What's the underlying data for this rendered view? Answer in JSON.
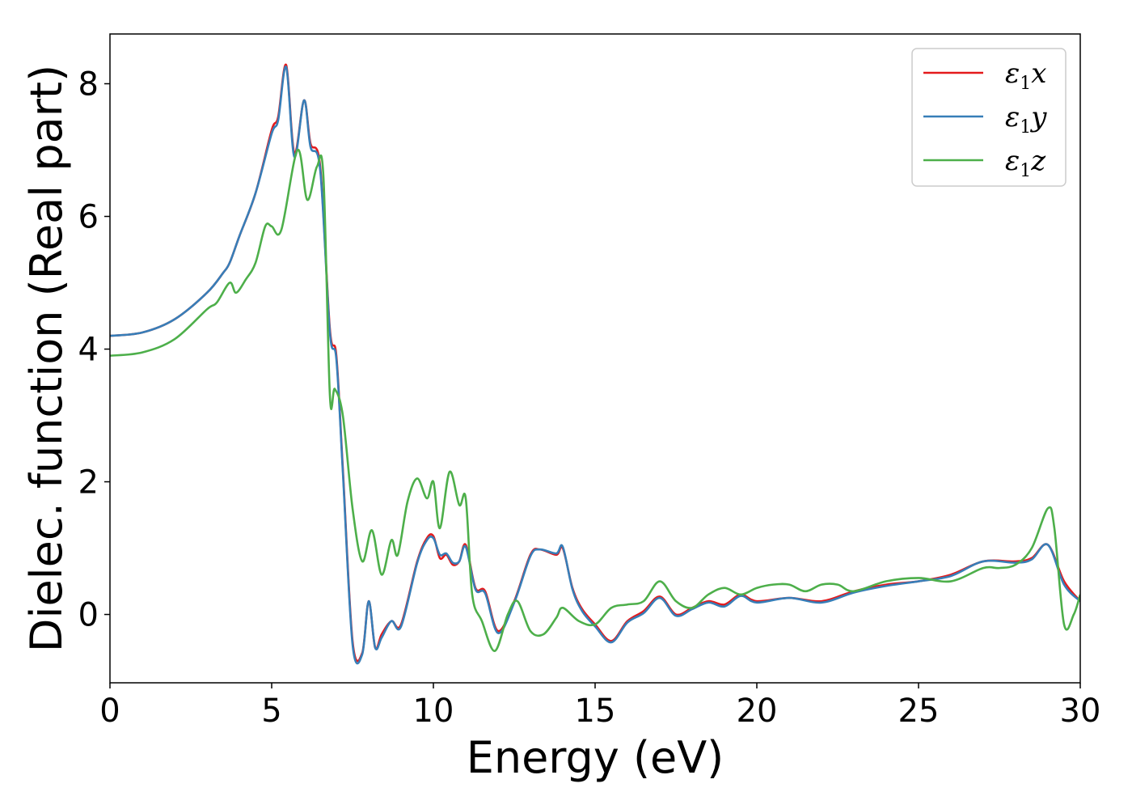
{
  "chart_data": {
    "type": "line",
    "xlabel": "Energy (eV)",
    "ylabel": "Dielec. function (Real part)",
    "xlim": [
      0,
      30
    ],
    "ylim": [
      -1.03,
      8.75
    ],
    "xticks": [
      "0",
      "5",
      "10",
      "15",
      "20",
      "25",
      "30"
    ],
    "yticks": [
      "0",
      "2",
      "4",
      "6",
      "8"
    ],
    "grid": false,
    "legend_position": "top-right",
    "series": [
      {
        "name": "ε1x",
        "legend": {
          "main": "ε",
          "sub": "1",
          "tail": "x"
        },
        "color": "#e41a1c",
        "x": [
          0,
          1,
          2,
          3,
          3.5,
          3.7,
          4,
          4.5,
          5,
          5.2,
          5.45,
          5.7,
          6.0,
          6.2,
          6.5,
          6.8,
          7.0,
          7.2,
          7.5,
          7.8,
          8.0,
          8.2,
          8.4,
          8.7,
          9.0,
          9.5,
          9.8,
          10.0,
          10.2,
          10.4,
          10.6,
          10.8,
          11.0,
          11.3,
          11.6,
          12.0,
          12.5,
          13.0,
          13.3,
          13.8,
          14.0,
          14.3,
          14.6,
          15.0,
          15.5,
          16.0,
          16.5,
          17.0,
          17.5,
          18.0,
          18.5,
          19.0,
          19.5,
          20.0,
          21.0,
          22.0,
          23.0,
          24.0,
          25.0,
          26.0,
          27.0,
          28.0,
          28.5,
          29.0,
          29.5,
          30.0
        ],
        "y": [
          4.2,
          4.25,
          4.45,
          4.85,
          5.15,
          5.3,
          5.7,
          6.35,
          7.3,
          7.5,
          8.28,
          6.95,
          7.75,
          7.1,
          6.75,
          4.3,
          3.9,
          2.2,
          -0.4,
          -0.58,
          0.2,
          -0.5,
          -0.3,
          -0.1,
          -0.15,
          0.8,
          1.15,
          1.18,
          0.85,
          0.9,
          0.75,
          0.8,
          1.05,
          0.4,
          0.35,
          -0.25,
          0.2,
          0.9,
          0.98,
          0.9,
          1.0,
          0.4,
          0.08,
          -0.15,
          -0.4,
          -0.1,
          0.05,
          0.27,
          0.0,
          0.1,
          0.2,
          0.15,
          0.3,
          0.2,
          0.25,
          0.2,
          0.35,
          0.45,
          0.5,
          0.6,
          0.8,
          0.8,
          0.85,
          1.05,
          0.5,
          0.2
        ]
      },
      {
        "name": "ε1y",
        "legend": {
          "main": "ε",
          "sub": "1",
          "tail": "y"
        },
        "color": "#377eb8",
        "x": [
          0,
          1,
          2,
          3,
          3.5,
          3.7,
          4,
          4.5,
          5,
          5.2,
          5.45,
          5.7,
          6.0,
          6.2,
          6.5,
          6.8,
          7.0,
          7.2,
          7.5,
          7.8,
          8.0,
          8.2,
          8.4,
          8.7,
          9.0,
          9.5,
          9.8,
          10.0,
          10.2,
          10.4,
          10.6,
          10.8,
          11.0,
          11.3,
          11.6,
          12.0,
          12.5,
          13.0,
          13.3,
          13.8,
          14.0,
          14.3,
          14.6,
          15.0,
          15.5,
          16.0,
          16.5,
          17.0,
          17.5,
          18.0,
          18.5,
          19.0,
          19.5,
          20.0,
          21.0,
          22.0,
          23.0,
          24.0,
          25.0,
          26.0,
          27.0,
          28.0,
          28.5,
          29.0,
          29.5,
          30.0
        ],
        "y": [
          4.2,
          4.25,
          4.45,
          4.85,
          5.15,
          5.3,
          5.7,
          6.35,
          7.25,
          7.45,
          8.25,
          6.9,
          7.75,
          7.05,
          6.7,
          4.25,
          3.85,
          2.15,
          -0.45,
          -0.6,
          0.2,
          -0.5,
          -0.35,
          -0.1,
          -0.18,
          0.78,
          1.12,
          1.15,
          0.9,
          0.92,
          0.78,
          0.8,
          1.02,
          0.38,
          0.32,
          -0.28,
          0.18,
          0.88,
          0.98,
          0.92,
          1.02,
          0.38,
          0.05,
          -0.18,
          -0.42,
          -0.12,
          0.02,
          0.25,
          -0.02,
          0.08,
          0.18,
          0.12,
          0.28,
          0.18,
          0.25,
          0.18,
          0.33,
          0.43,
          0.5,
          0.58,
          0.8,
          0.78,
          0.83,
          1.05,
          0.45,
          0.2
        ]
      },
      {
        "name": "ε1z",
        "legend": {
          "main": "ε",
          "sub": "1",
          "tail": "z"
        },
        "color": "#4daf4a",
        "x": [
          0,
          1,
          2,
          3,
          3.3,
          3.7,
          3.9,
          4.2,
          4.5,
          4.8,
          5.0,
          5.3,
          5.8,
          6.1,
          6.4,
          6.6,
          6.8,
          6.95,
          7.2,
          7.5,
          7.8,
          8.1,
          8.4,
          8.7,
          8.9,
          9.2,
          9.5,
          9.8,
          10.0,
          10.2,
          10.5,
          10.8,
          11.0,
          11.2,
          11.5,
          11.9,
          12.3,
          12.6,
          13.0,
          13.4,
          13.8,
          14.0,
          14.5,
          15.0,
          15.5,
          16.0,
          16.5,
          17.0,
          17.5,
          18.0,
          18.5,
          19.0,
          19.5,
          20.0,
          20.5,
          21.0,
          21.5,
          22.0,
          22.5,
          23.0,
          24.0,
          25.0,
          26.0,
          27.0,
          27.5,
          28.0,
          28.5,
          29.0,
          29.2,
          29.5,
          29.8,
          30.0
        ],
        "y": [
          3.9,
          3.95,
          4.15,
          4.6,
          4.7,
          5.0,
          4.85,
          5.05,
          5.3,
          5.85,
          5.85,
          5.8,
          7.0,
          6.25,
          6.75,
          6.6,
          3.3,
          3.4,
          3.0,
          1.6,
          0.8,
          1.27,
          0.6,
          1.12,
          0.9,
          1.7,
          2.05,
          1.75,
          2.0,
          1.3,
          2.15,
          1.65,
          1.75,
          0.3,
          -0.1,
          -0.55,
          0.0,
          0.2,
          -0.25,
          -0.3,
          -0.05,
          0.1,
          -0.1,
          -0.15,
          0.1,
          0.15,
          0.2,
          0.5,
          0.2,
          0.1,
          0.3,
          0.4,
          0.3,
          0.4,
          0.45,
          0.45,
          0.35,
          0.45,
          0.45,
          0.35,
          0.5,
          0.55,
          0.5,
          0.7,
          0.7,
          0.75,
          1.0,
          1.6,
          1.3,
          -0.15,
          0.0,
          0.3
        ]
      }
    ]
  }
}
